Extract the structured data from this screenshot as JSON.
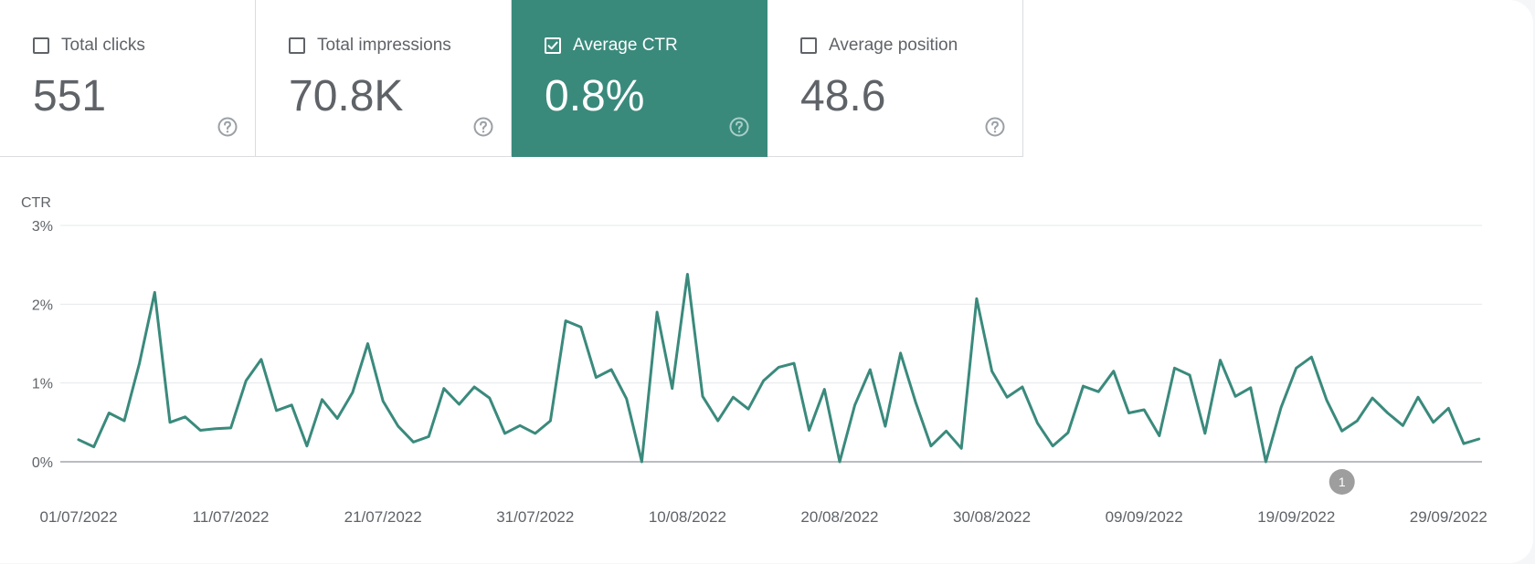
{
  "metrics": [
    {
      "label": "Total clicks",
      "value": "551",
      "checked": false
    },
    {
      "label": "Total impressions",
      "value": "70.8K",
      "checked": false
    },
    {
      "label": "Average CTR",
      "value": "0.8%",
      "checked": true
    },
    {
      "label": "Average position",
      "value": "48.6",
      "checked": false
    }
  ],
  "colors": {
    "accent": "#3a8a7c",
    "line": "#3a8a7c",
    "annotation": "#9e9e9e"
  },
  "chart_data": {
    "type": "line",
    "ylabel": "CTR",
    "ylim": [
      0,
      3
    ],
    "yticks": [
      0,
      1,
      2,
      3
    ],
    "ytick_labels": [
      "0%",
      "1%",
      "2%",
      "3%"
    ],
    "grid": true,
    "x_start": "2022-07-01",
    "x_end": "2022-09-30",
    "xtick_labels": [
      "01/07/2022",
      "11/07/2022",
      "21/07/2022",
      "31/07/2022",
      "10/08/2022",
      "20/08/2022",
      "30/08/2022",
      "09/09/2022",
      "19/09/2022",
      "29/09/2022"
    ],
    "series": [
      {
        "values": [
          0.28,
          0.19,
          0.62,
          0.52,
          1.25,
          2.15,
          0.5,
          0.57,
          0.4,
          0.42,
          0.43,
          1.03,
          1.3,
          0.65,
          0.72,
          0.2,
          0.79,
          0.55,
          0.88,
          1.5,
          0.77,
          0.45,
          0.25,
          0.32,
          0.93,
          0.73,
          0.95,
          0.81,
          0.36,
          0.46,
          0.36,
          0.52,
          1.79,
          1.71,
          1.07,
          1.17,
          0.8,
          0.0,
          1.9,
          0.93,
          2.38,
          0.83,
          0.52,
          0.82,
          0.67,
          1.03,
          1.2,
          1.25,
          0.4,
          0.92,
          0.0,
          0.72,
          1.17,
          0.45,
          1.38,
          0.75,
          0.2,
          0.39,
          0.17,
          2.07,
          1.15,
          0.82,
          0.95,
          0.49,
          0.2,
          0.37,
          0.96,
          0.89,
          1.15,
          0.62,
          0.66,
          0.33,
          1.19,
          1.1,
          0.36,
          1.29,
          0.83,
          0.94,
          0.0,
          0.69,
          1.19,
          1.33,
          0.78,
          0.39,
          0.52,
          0.81,
          0.62,
          0.46,
          0.82,
          0.5,
          0.68,
          0.23,
          0.29
        ]
      }
    ],
    "annotations": [
      {
        "label": "1",
        "date": "2022-09-22"
      }
    ]
  }
}
